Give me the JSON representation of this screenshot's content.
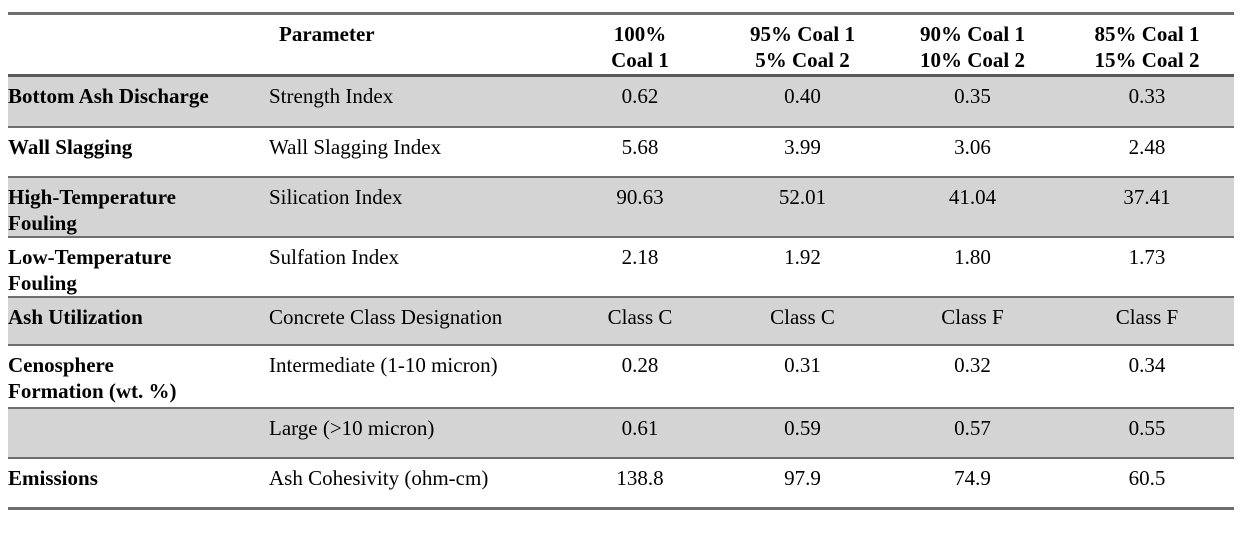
{
  "table": {
    "header": {
      "category_label": "",
      "parameter_label": "Parameter",
      "columns": [
        "100%\nCoal 1",
        "95% Coal 1\n5% Coal 2",
        "90% Coal 1\n10% Coal 2",
        "85% Coal 1\n15% Coal 2"
      ]
    },
    "rows": [
      {
        "category": "Bottom Ash Discharge",
        "parameter": "Strength Index",
        "values": [
          "0.62",
          "0.40",
          "0.35",
          "0.33"
        ],
        "shaded": true
      },
      {
        "category": "Wall Slagging",
        "parameter": "Wall Slagging Index",
        "values": [
          "5.68",
          "3.99",
          "3.06",
          "2.48"
        ],
        "shaded": false
      },
      {
        "category": "High-Temperature\nFouling",
        "parameter": "Silication Index",
        "values": [
          "90.63",
          "52.01",
          "41.04",
          "37.41"
        ],
        "shaded": true
      },
      {
        "category": "Low-Temperature\nFouling",
        "parameter": "Sulfation Index",
        "values": [
          "2.18",
          "1.92",
          "1.80",
          "1.73"
        ],
        "shaded": false
      },
      {
        "category": "Ash Utilization",
        "parameter": "Concrete Class Designation",
        "values": [
          "Class C",
          "Class C",
          "Class F",
          "Class F"
        ],
        "shaded": true
      },
      {
        "category": "Cenosphere\nFormation (wt. %)",
        "parameter": "Intermediate (1-10 micron)",
        "values": [
          "0.28",
          "0.31",
          "0.32",
          "0.34"
        ],
        "shaded": false
      },
      {
        "category": "",
        "parameter": "Large (>10 micron)",
        "values": [
          "0.61",
          "0.59",
          "0.57",
          "0.55"
        ],
        "shaded": true
      },
      {
        "category": "Emissions",
        "parameter": "Ash Cohesivity (ohm-cm)",
        "values": [
          "138.8",
          "97.9",
          "74.9",
          "60.5"
        ],
        "shaded": false
      }
    ],
    "colors": {
      "shaded_row": "#d4d4d4",
      "border": "#6e6e6e",
      "header_border": "#5a5a5a",
      "text": "#000000",
      "background": "#ffffff"
    }
  }
}
